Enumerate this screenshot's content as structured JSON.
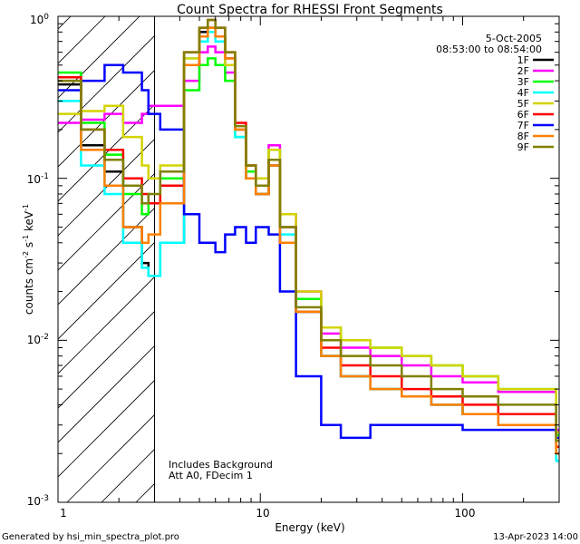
{
  "chart_data": {
    "type": "line",
    "title": "Count Spectra for RHESSI Front Segments",
    "xlabel": "Energy (keV)",
    "ylabel_base": "counts cm",
    "ylabel_exp1": "-2",
    "ylabel_mid": " s",
    "ylabel_exp2": "-1",
    "ylabel_end": " keV",
    "ylabel_exp3": "-1",
    "xscale": "log",
    "yscale": "log",
    "xlim": [
      1,
      300
    ],
    "ylim": [
      0.001,
      1.0
    ],
    "x_ticks": [
      {
        "v": 10,
        "label": "10"
      },
      {
        "v": 100,
        "label": "100"
      }
    ],
    "x_label_one": "1",
    "y_ticks": [
      {
        "v": 0.001,
        "mant": "10",
        "exp": "-3"
      },
      {
        "v": 0.01,
        "mant": "10",
        "exp": "-2"
      },
      {
        "v": 0.1,
        "mant": "10",
        "exp": "-1"
      },
      {
        "v": 1.0,
        "mant": "10",
        "exp": "0"
      }
    ],
    "attenuator_threshold_kev": 3,
    "date": "5-Oct-2005",
    "time_range": "08:53:00 to 08:54:00",
    "annotations": [
      "Includes Background",
      "Att A0, FDecim 1"
    ],
    "footer_left": "Generated by hsi_min_spectra_plot.pro",
    "footer_right": "13-Apr-2023 14:00",
    "series": [
      {
        "name": "1F",
        "color": "#000000",
        "values": [
          0.38,
          0.16,
          0.11,
          0.05,
          0.03,
          0.025,
          0.04,
          0.5,
          0.8,
          0.85,
          0.75,
          0.55,
          0.2,
          0.1,
          0.08,
          0.12,
          0.04,
          0.015,
          0.008,
          0.006,
          0.005,
          0.0045,
          0.004,
          0.0035,
          0.003,
          0.0022
        ]
      },
      {
        "name": "2F",
        "color": "#ff00ff",
        "values": [
          0.22,
          0.23,
          0.25,
          0.22,
          0.25,
          0.28,
          0.28,
          0.4,
          0.6,
          0.65,
          0.6,
          0.45,
          0.2,
          0.12,
          0.1,
          0.16,
          0.06,
          0.02,
          0.011,
          0.009,
          0.008,
          0.007,
          0.006,
          0.0055,
          0.0048,
          0.0028
        ]
      },
      {
        "name": "3F",
        "color": "#00ff00",
        "values": [
          0.45,
          0.22,
          0.14,
          0.08,
          0.06,
          0.07,
          0.1,
          0.35,
          0.5,
          0.55,
          0.5,
          0.4,
          0.18,
          0.11,
          0.1,
          0.15,
          0.05,
          0.018,
          0.012,
          0.01,
          0.009,
          0.008,
          0.007,
          0.006,
          0.005,
          0.0026
        ]
      },
      {
        "name": "4F",
        "color": "#00ffff",
        "values": [
          0.3,
          0.12,
          0.08,
          0.04,
          0.028,
          0.025,
          0.04,
          0.55,
          0.7,
          0.8,
          0.7,
          0.5,
          0.18,
          0.1,
          0.09,
          0.13,
          0.045,
          0.015,
          0.008,
          0.006,
          0.005,
          0.0045,
          0.004,
          0.0035,
          0.003,
          0.0018
        ]
      },
      {
        "name": "5F",
        "color": "#d4d400",
        "values": [
          0.25,
          0.26,
          0.28,
          0.18,
          0.12,
          0.1,
          0.12,
          0.55,
          0.75,
          0.85,
          0.75,
          0.5,
          0.2,
          0.12,
          0.1,
          0.15,
          0.06,
          0.02,
          0.012,
          0.01,
          0.009,
          0.008,
          0.007,
          0.006,
          0.005,
          0.0027
        ]
      },
      {
        "name": "6F",
        "color": "#ff0000",
        "values": [
          0.42,
          0.2,
          0.15,
          0.1,
          0.08,
          0.07,
          0.09,
          0.6,
          0.85,
          0.95,
          0.85,
          0.6,
          0.22,
          0.12,
          0.09,
          0.13,
          0.05,
          0.015,
          0.009,
          0.007,
          0.006,
          0.005,
          0.0045,
          0.004,
          0.0035,
          0.0022
        ]
      },
      {
        "name": "7F",
        "color": "#0000ff",
        "values": [
          0.35,
          0.4,
          0.5,
          0.45,
          0.35,
          0.25,
          0.2,
          0.06,
          0.04,
          0.04,
          0.035,
          0.045,
          0.05,
          0.04,
          0.05,
          0.045,
          0.02,
          0.006,
          0.003,
          0.0025,
          0.003,
          0.003,
          0.003,
          0.0028,
          0.0028,
          0.0025
        ]
      },
      {
        "name": "8F",
        "color": "#ff8000",
        "values": [
          0.4,
          0.15,
          0.09,
          0.05,
          0.04,
          0.045,
          0.07,
          0.5,
          0.75,
          0.85,
          0.75,
          0.55,
          0.2,
          0.1,
          0.08,
          0.12,
          0.04,
          0.015,
          0.008,
          0.006,
          0.005,
          0.0045,
          0.004,
          0.0035,
          0.003,
          0.002
        ]
      },
      {
        "name": "9F",
        "color": "#808000",
        "values": [
          0.4,
          0.2,
          0.13,
          0.09,
          0.07,
          0.08,
          0.11,
          0.6,
          0.85,
          0.95,
          0.85,
          0.6,
          0.21,
          0.12,
          0.09,
          0.13,
          0.05,
          0.016,
          0.01,
          0.008,
          0.007,
          0.006,
          0.005,
          0.0045,
          0.004,
          0.0024
        ]
      }
    ],
    "x": [
      1.0,
      1.3,
      1.7,
      2.1,
      2.6,
      2.8,
      3.2,
      4.2,
      5.0,
      5.5,
      6.0,
      6.7,
      7.5,
      8.5,
      9.5,
      11.0,
      12.5,
      15.0,
      20.0,
      25.0,
      35.0,
      50.0,
      70.0,
      100.0,
      150.0,
      290.0
    ]
  }
}
